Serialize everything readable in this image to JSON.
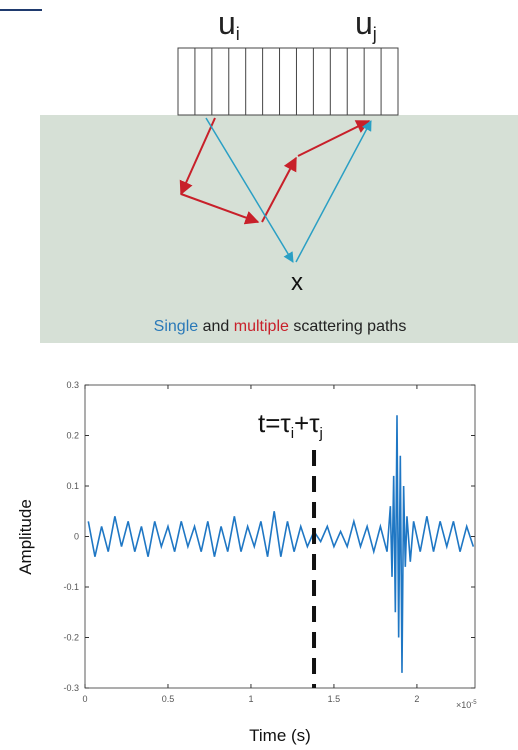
{
  "diagram": {
    "element_i": "u",
    "element_i_sub": "i",
    "element_j": "u",
    "element_j_sub": "j",
    "point": "x",
    "caption": [
      "Single",
      "and",
      "multiple",
      "scattering paths"
    ]
  },
  "chart_data": {
    "type": "line",
    "annotation_parts": [
      {
        "text": "t=τ",
        "sub": "i"
      },
      {
        "text": "+τ",
        "sub": "j"
      }
    ],
    "annotation_x": 1.38,
    "xlabel": "Time (s)",
    "ylabel": "Amplitude",
    "x_multiplier": {
      "base": "×10",
      "exponent": "-5"
    },
    "xlim": [
      0,
      2.35
    ],
    "xticks": [
      0,
      0.5,
      1,
      1.5,
      2
    ],
    "ylim": [
      -0.3,
      0.3
    ],
    "yticks": [
      -0.3,
      -0.2,
      -0.1,
      0,
      0.1,
      0.2,
      0.3
    ],
    "series": [
      {
        "color": "#1f77c4",
        "x": [
          0.02,
          0.06,
          0.1,
          0.14,
          0.18,
          0.22,
          0.26,
          0.3,
          0.34,
          0.38,
          0.42,
          0.46,
          0.5,
          0.54,
          0.58,
          0.62,
          0.66,
          0.7,
          0.74,
          0.78,
          0.82,
          0.86,
          0.9,
          0.94,
          0.98,
          1.02,
          1.06,
          1.1,
          1.14,
          1.18,
          1.22,
          1.26,
          1.3,
          1.34,
          1.38,
          1.42,
          1.46,
          1.5,
          1.54,
          1.58,
          1.62,
          1.66,
          1.7,
          1.74,
          1.78,
          1.82,
          1.84,
          1.85,
          1.86,
          1.87,
          1.88,
          1.89,
          1.9,
          1.91,
          1.92,
          1.93,
          1.94,
          1.96,
          1.98,
          2.02,
          2.06,
          2.1,
          2.14,
          2.18,
          2.22,
          2.26,
          2.3,
          2.34
        ],
        "values": [
          0.03,
          -0.04,
          0.02,
          -0.03,
          0.04,
          -0.02,
          0.03,
          -0.03,
          0.02,
          -0.04,
          0.03,
          -0.02,
          0.02,
          -0.03,
          0.03,
          -0.02,
          0.02,
          -0.03,
          0.03,
          -0.04,
          0.02,
          -0.03,
          0.04,
          -0.03,
          0.02,
          -0.02,
          0.03,
          -0.04,
          0.05,
          -0.04,
          0.03,
          -0.03,
          0.02,
          -0.02,
          0.01,
          -0.01,
          0.02,
          -0.02,
          0.01,
          -0.02,
          0.03,
          -0.02,
          0.02,
          -0.03,
          0.02,
          -0.03,
          0.06,
          -0.08,
          0.12,
          -0.15,
          0.24,
          -0.2,
          0.16,
          -0.27,
          0.1,
          -0.06,
          0.04,
          -0.05,
          0.03,
          -0.03,
          0.04,
          -0.03,
          0.03,
          -0.02,
          0.03,
          -0.03,
          0.02,
          -0.02
        ]
      }
    ]
  }
}
